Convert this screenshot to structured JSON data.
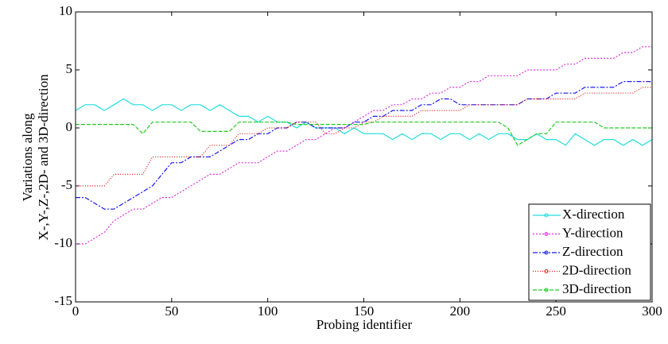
{
  "chart_data": {
    "type": "line",
    "y_label": [
      "Variations along",
      "X-,Y-,Z-,2D- and 3D-direction"
    ],
    "x_label": "Probing identifier",
    "x": [
      0,
      5,
      10,
      15,
      20,
      25,
      30,
      35,
      40,
      45,
      50,
      55,
      60,
      65,
      70,
      75,
      80,
      85,
      90,
      95,
      100,
      105,
      110,
      115,
      120,
      125,
      130,
      135,
      140,
      145,
      150,
      155,
      160,
      165,
      170,
      175,
      180,
      185,
      190,
      195,
      200,
      205,
      210,
      215,
      220,
      225,
      230,
      235,
      240,
      245,
      250,
      255,
      260,
      265,
      270,
      275,
      280,
      285,
      290,
      295,
      300
    ],
    "series": [
      {
        "name": "X-direction",
        "color": "#22dddd",
        "dash": "none",
        "values": [
          1.5,
          2,
          2,
          1.5,
          2,
          2.5,
          2,
          2,
          1.5,
          2,
          2,
          1.5,
          2,
          2,
          1.5,
          2,
          1.5,
          1,
          1,
          0.5,
          1,
          0.5,
          0.5,
          0,
          0.5,
          0,
          0,
          0,
          -0.5,
          0,
          -0.5,
          -0.5,
          -0.5,
          -1,
          -0.5,
          -1,
          -0.5,
          -0.5,
          -1,
          -0.5,
          -0.5,
          -1,
          -0.5,
          -1,
          -0.5,
          -0.5,
          -1,
          -1,
          -0.5,
          -1,
          -1,
          -1.5,
          -0.5,
          -1,
          -1.5,
          -1,
          -1,
          -1.5,
          -1,
          -1.5,
          -1
        ]
      },
      {
        "name": "Y-direction",
        "color": "#e030e0",
        "dash": "2 2",
        "values": [
          -10,
          -10,
          -9.5,
          -9,
          -8,
          -7.5,
          -7,
          -7,
          -6.5,
          -6,
          -6,
          -5.5,
          -5,
          -4.5,
          -4,
          -4,
          -3.5,
          -3,
          -3,
          -3,
          -2.5,
          -2,
          -2,
          -1.5,
          -1,
          -1,
          -0.5,
          0,
          0,
          0.5,
          1,
          1.5,
          1.5,
          2,
          2,
          2.5,
          2.5,
          3,
          3,
          3.5,
          3.5,
          4,
          4,
          4.5,
          4.5,
          4.5,
          4.5,
          5,
          5,
          5,
          5,
          5.5,
          5.5,
          6,
          6,
          6,
          6,
          6.5,
          6.5,
          7,
          7
        ]
      },
      {
        "name": "Z-direction",
        "color": "#1a1aee",
        "dash": "6 2 2 2",
        "values": [
          -6,
          -6,
          -6.5,
          -7,
          -7,
          -6.5,
          -6,
          -5.5,
          -5,
          -4,
          -3,
          -3,
          -2.5,
          -2.5,
          -2.5,
          -2,
          -1.5,
          -1,
          -1,
          -0.5,
          -0.5,
          0,
          0,
          0.5,
          0.5,
          0,
          0,
          0,
          0,
          0.5,
          0.5,
          1,
          1,
          1.5,
          1.5,
          1.5,
          2,
          2,
          2.5,
          2.5,
          2,
          2,
          2,
          2,
          2,
          2,
          2,
          2.5,
          2.5,
          2.5,
          3,
          3,
          3,
          3.5,
          3.5,
          3.5,
          3.5,
          4,
          4,
          4,
          4
        ]
      },
      {
        "name": "2D-direction",
        "color": "#ee1111",
        "dash": "1 2",
        "values": [
          -5,
          -5,
          -5,
          -5,
          -4,
          -4,
          -4,
          -4,
          -2.5,
          -2.5,
          -2.5,
          -2.5,
          -2.5,
          -2.5,
          -1.5,
          -1.5,
          -1.5,
          -0.5,
          -0.5,
          -0.5,
          0,
          0,
          0,
          0.5,
          0.5,
          0.5,
          -0.5,
          -0.5,
          0,
          0,
          0.5,
          0.5,
          1,
          1,
          1,
          1,
          1.5,
          1.5,
          1.5,
          1.5,
          1.5,
          2,
          2,
          2,
          2,
          2,
          2,
          2.5,
          2.5,
          2.5,
          2.5,
          2.5,
          2.5,
          3,
          3,
          3,
          3,
          3,
          3,
          3.5,
          3.5
        ]
      },
      {
        "name": "3D-direction",
        "color": "#22cc22",
        "dash": "5 2",
        "values": [
          0.3,
          0.3,
          0.3,
          0.3,
          0.3,
          0.3,
          0.3,
          -0.5,
          0.5,
          0.5,
          0.5,
          0.5,
          0.5,
          -0.3,
          -0.3,
          -0.3,
          -0.3,
          0.5,
          0.5,
          0.5,
          0.5,
          0.5,
          0.5,
          0.3,
          0.3,
          0.3,
          0.3,
          0.3,
          0.3,
          0.3,
          0.3,
          0.5,
          0.5,
          0.5,
          0.5,
          0.5,
          0.5,
          0.5,
          0.5,
          0.5,
          0.5,
          0.5,
          0.5,
          0.5,
          0.5,
          0,
          -1.5,
          -1,
          -0.5,
          -0.5,
          0.5,
          0.5,
          0.5,
          0.5,
          0.5,
          0,
          0,
          0,
          0,
          0,
          0
        ]
      }
    ],
    "xlim": [
      0,
      300
    ],
    "xticks": [
      0,
      50,
      100,
      150,
      200,
      250,
      300
    ],
    "ylim": [
      -15,
      10
    ],
    "yticks": [
      -15,
      -10,
      -5,
      0,
      5,
      10
    ],
    "grid": false,
    "legend": "lower right"
  }
}
